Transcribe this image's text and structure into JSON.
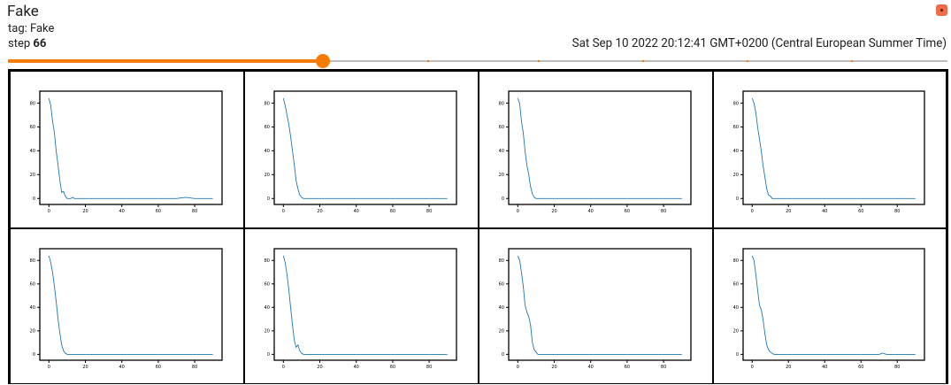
{
  "header": {
    "title": "Fake",
    "tag": "tag: Fake",
    "step_label": "step",
    "step_value": "66",
    "timestamp": "Sat Sep 10 2022 20:12:41 GMT+0200 (Central European Summer Time)"
  },
  "menu": {
    "icon": "more-vert-icon",
    "color": "#ef6c4a"
  },
  "slider": {
    "value_fraction": 0.335,
    "accent": "#f57c00",
    "track": "#bdbdbd",
    "marks": [
      0.446,
      0.564,
      0.675,
      0.786,
      0.897
    ]
  },
  "chart_data": [
    {
      "type": "line",
      "x": [
        0,
        1,
        2,
        3,
        4,
        5,
        6,
        7,
        8,
        9,
        10,
        11,
        12,
        13,
        14,
        15,
        20,
        30,
        40,
        50,
        60,
        70,
        75,
        80,
        85,
        90
      ],
      "y": [
        84,
        78,
        65,
        55,
        40,
        28,
        15,
        5,
        6,
        2,
        0,
        0,
        0,
        1,
        0,
        0,
        0,
        0,
        0,
        0,
        0,
        0,
        1,
        0,
        0,
        0
      ],
      "xticks": [
        "0",
        "20",
        "40",
        "60",
        "80"
      ],
      "yticks": [
        "0",
        "20",
        "40",
        "60",
        "80"
      ],
      "xlim": [
        -5,
        95
      ],
      "ylim": [
        -5,
        90
      ],
      "color": "#1f77b4"
    },
    {
      "type": "line",
      "x": [
        0,
        1,
        2,
        3,
        4,
        5,
        6,
        7,
        8,
        9,
        10,
        11,
        12,
        15,
        20,
        40,
        60,
        80,
        90
      ],
      "y": [
        84,
        78,
        70,
        62,
        52,
        40,
        28,
        15,
        8,
        3,
        1,
        0,
        0,
        0,
        0,
        0,
        0,
        0,
        0
      ],
      "xticks": [
        "0",
        "20",
        "40",
        "60",
        "80"
      ],
      "yticks": [
        "0",
        "20",
        "40",
        "60",
        "80"
      ],
      "xlim": [
        -5,
        95
      ],
      "ylim": [
        -5,
        90
      ],
      "color": "#1f77b4"
    },
    {
      "type": "line",
      "x": [
        0,
        1,
        2,
        3,
        4,
        5,
        6,
        7,
        8,
        9,
        10,
        12,
        15,
        20,
        40,
        60,
        80,
        90
      ],
      "y": [
        84,
        80,
        65,
        55,
        40,
        28,
        20,
        10,
        4,
        1,
        0,
        0,
        0,
        0,
        0,
        0,
        0,
        0
      ],
      "xticks": [
        "0",
        "20",
        "40",
        "60",
        "80"
      ],
      "yticks": [
        "0",
        "20",
        "40",
        "60",
        "80"
      ],
      "xlim": [
        -5,
        95
      ],
      "ylim": [
        -5,
        90
      ],
      "color": "#1f77b4"
    },
    {
      "type": "line",
      "x": [
        0,
        1,
        2,
        3,
        4,
        5,
        6,
        7,
        8,
        9,
        10,
        11,
        12,
        15,
        20,
        40,
        60,
        80,
        90
      ],
      "y": [
        84,
        80,
        72,
        60,
        50,
        40,
        28,
        18,
        8,
        3,
        2,
        0,
        0,
        0,
        0,
        0,
        0,
        0,
        0
      ],
      "xticks": [
        "0",
        "20",
        "40",
        "60",
        "80"
      ],
      "yticks": [
        "0",
        "20",
        "40",
        "60",
        "80"
      ],
      "xlim": [
        -5,
        95
      ],
      "ylim": [
        -5,
        90
      ],
      "color": "#1f77b4"
    },
    {
      "type": "line",
      "x": [
        0,
        1,
        2,
        3,
        4,
        5,
        6,
        7,
        8,
        9,
        10,
        11,
        12,
        15,
        20,
        40,
        60,
        80,
        90
      ],
      "y": [
        84,
        78,
        70,
        58,
        45,
        30,
        18,
        8,
        3,
        1,
        0,
        0,
        0,
        0,
        0,
        0,
        0,
        0,
        0
      ],
      "xticks": [
        "0",
        "20",
        "40",
        "60",
        "80"
      ],
      "yticks": [
        "0",
        "20",
        "40",
        "60",
        "80"
      ],
      "xlim": [
        -5,
        95
      ],
      "ylim": [
        -5,
        90
      ],
      "color": "#1f77b4"
    },
    {
      "type": "line",
      "x": [
        0,
        1,
        2,
        3,
        4,
        5,
        6,
        7,
        8,
        9,
        10,
        11,
        12,
        15,
        20,
        40,
        60,
        80,
        90
      ],
      "y": [
        84,
        78,
        68,
        55,
        40,
        25,
        12,
        6,
        8,
        3,
        1,
        0,
        0,
        0,
        0,
        0,
        0,
        0,
        0
      ],
      "xticks": [
        "0",
        "20",
        "40",
        "60",
        "80"
      ],
      "yticks": [
        "0",
        "20",
        "40",
        "60",
        "80"
      ],
      "xlim": [
        -5,
        95
      ],
      "ylim": [
        -5,
        90
      ],
      "color": "#1f77b4"
    },
    {
      "type": "line",
      "x": [
        0,
        1,
        2,
        3,
        4,
        5,
        6,
        7,
        8,
        9,
        10,
        11,
        12,
        15,
        20,
        40,
        60,
        80,
        90
      ],
      "y": [
        84,
        80,
        70,
        58,
        42,
        36,
        32,
        25,
        10,
        4,
        2,
        0,
        0,
        0,
        0,
        0,
        0,
        0,
        0
      ],
      "xticks": [
        "0",
        "20",
        "40",
        "60",
        "80"
      ],
      "yticks": [
        "0",
        "20",
        "40",
        "60",
        "80"
      ],
      "xlim": [
        -5,
        95
      ],
      "ylim": [
        -5,
        90
      ],
      "color": "#1f77b4"
    },
    {
      "type": "line",
      "x": [
        0,
        1,
        2,
        3,
        4,
        5,
        6,
        7,
        8,
        9,
        10,
        11,
        12,
        15,
        20,
        40,
        60,
        70,
        72,
        74,
        80,
        90
      ],
      "y": [
        84,
        80,
        68,
        55,
        42,
        38,
        30,
        18,
        8,
        4,
        2,
        1,
        0,
        0,
        0,
        0,
        0,
        0,
        1,
        0,
        0,
        0
      ],
      "xticks": [
        "0",
        "20",
        "40",
        "60",
        "80"
      ],
      "yticks": [
        "0",
        "20",
        "40",
        "60",
        "80"
      ],
      "xlim": [
        -5,
        95
      ],
      "ylim": [
        -5,
        90
      ],
      "color": "#1f77b4"
    }
  ]
}
